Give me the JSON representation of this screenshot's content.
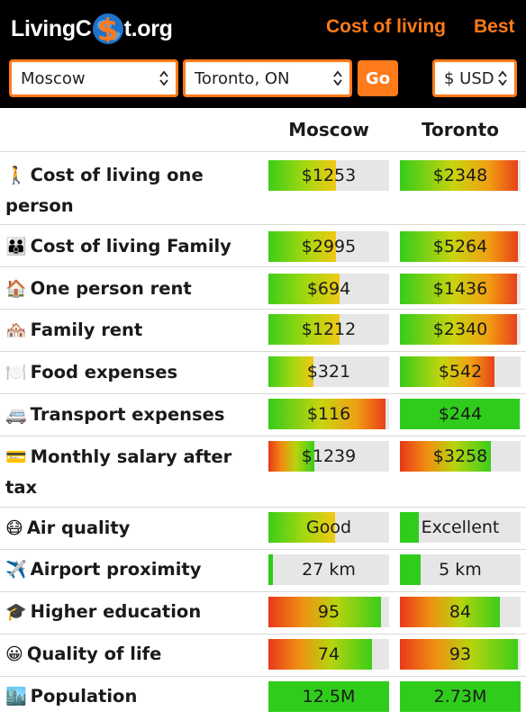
{
  "header": {
    "logo_left": "LivingC",
    "logo_mid": "$",
    "logo_right": "t.org",
    "nav": [
      "Cost of living",
      "Best"
    ]
  },
  "controls": {
    "city1": "Moscow",
    "city2": "Toronto, ON",
    "go": "Go",
    "currency": "$ USD"
  },
  "columns": [
    "Moscow",
    "Toronto"
  ],
  "rows": [
    {
      "icon": "person-walking-icon",
      "emoji": "🚶",
      "label": "Cost of living one person",
      "a": "$1253",
      "b": "$2348",
      "a_level": 0.56,
      "b_level": 0.98
    },
    {
      "icon": "family-icon",
      "emoji": "👪",
      "label": "Cost of living Family",
      "a": "$2995",
      "b": "$5264",
      "a_level": 0.56,
      "b_level": 0.98
    },
    {
      "icon": "house-icon",
      "emoji": "🏠",
      "label": "One person rent",
      "a": "$694",
      "b": "$1436",
      "a_level": 0.59,
      "b_level": 0.97
    },
    {
      "icon": "houses-icon",
      "emoji": "🏘️",
      "label": "Family rent",
      "a": "$1212",
      "b": "$2340",
      "a_level": 0.59,
      "b_level": 0.97
    },
    {
      "icon": "plate-icon",
      "emoji": "🍽️",
      "label": "Food expenses",
      "a": "$321",
      "b": "$542",
      "a_level": 0.37,
      "b_level": 0.78
    },
    {
      "icon": "bus-icon",
      "emoji": "🚐",
      "label": "Transport expenses",
      "a": "$116",
      "b": "$244",
      "a_level": 0.97,
      "b_level": 0.99
    },
    {
      "icon": "card-icon",
      "emoji": "💳",
      "label": "Monthly salary after tax",
      "a": "$1239",
      "b": "$3258",
      "a_level": 0.38,
      "b_level": 0.75
    },
    {
      "icon": "mask-face-icon",
      "emoji": "😷",
      "label": "Air quality",
      "a": "Good",
      "b": "Excellent",
      "a_level": 0.55,
      "b_level": 0.16
    },
    {
      "icon": "airplane-icon",
      "emoji": "✈️",
      "label": "Airport proximity",
      "a": "27 km",
      "b": "5 km",
      "a_level": 0.04,
      "b_level": 0.17
    },
    {
      "icon": "graduation-cap-icon",
      "emoji": "🎓",
      "label": "Higher education",
      "a": "95",
      "b": "84",
      "a_level": 0.93,
      "b_level": 0.83
    },
    {
      "icon": "smile-icon",
      "emoji": "😀",
      "label": "Quality of life",
      "a": "74",
      "b": "93",
      "a_level": 0.86,
      "b_level": 0.98
    },
    {
      "icon": "city-icon",
      "emoji": "🏙️",
      "label": "Population",
      "a": "12.5M",
      "b": "2.73M",
      "a_level": 1.0,
      "b_level": 1.0
    }
  ]
}
